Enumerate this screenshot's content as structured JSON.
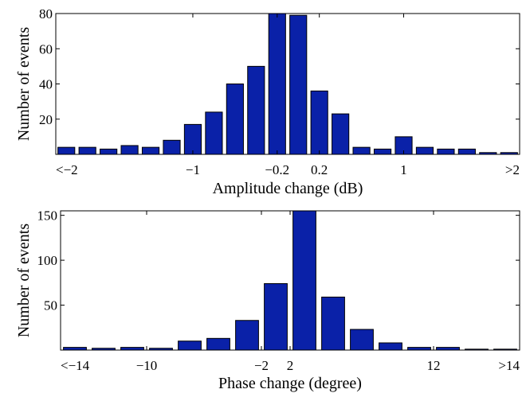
{
  "chart_data": [
    {
      "type": "bar",
      "xlabel": "Amplitude change (dB)",
      "ylabel": "Number of events",
      "ylim": [
        0,
        80
      ],
      "yticks": [
        20,
        40,
        60,
        80
      ],
      "xtick_labels": [
        "<−2",
        "−1",
        "−0.2",
        "0.2",
        "1",
        ">2"
      ],
      "xtick_bins": [
        0,
        6.5,
        10.5,
        12.5,
        16.5,
        22
      ],
      "values": [
        4,
        4,
        3,
        5,
        4,
        8,
        17,
        24,
        40,
        50,
        80,
        79,
        36,
        23,
        4,
        3,
        10,
        4,
        3,
        3,
        1,
        1
      ],
      "grid": false
    },
    {
      "type": "bar",
      "xlabel": "Phase change (degree)",
      "ylabel": "Number of events",
      "ylim": [
        0,
        155
      ],
      "yticks": [
        50,
        100,
        150
      ],
      "xtick_labels": [
        "<−14",
        "−10",
        "−2",
        "2",
        "12",
        ">14"
      ],
      "xtick_bins": [
        0,
        3,
        7,
        8,
        13,
        16
      ],
      "values": [
        3,
        2,
        3,
        2,
        10,
        13,
        33,
        74,
        155,
        59,
        23,
        8,
        3,
        3,
        1,
        1
      ],
      "grid": false
    }
  ]
}
